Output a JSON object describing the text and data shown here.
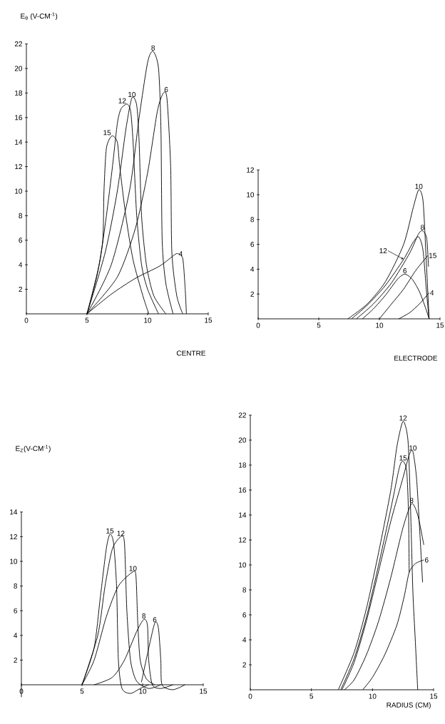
{
  "chart_data": [
    {
      "type": "line",
      "ylabel": "E$_{θ}$ (V-CM$^{-1}$)",
      "xlabel": "CENTRE",
      "xlim": [
        0,
        15
      ],
      "ylim": [
        0,
        22
      ],
      "xticks": [
        0,
        5,
        10,
        15
      ],
      "yticks": [
        2,
        4,
        6,
        8,
        10,
        12,
        14,
        16,
        18,
        20,
        22
      ],
      "series": [
        {
          "name": "15",
          "color": "#000000",
          "x": [
            5,
            5.8,
            6.3,
            6.4,
            6.6,
            7.05,
            7.5,
            7.7,
            8.2,
            8.8,
            9.6,
            10.1
          ],
          "values": [
            0,
            3,
            6,
            10,
            13.5,
            14.5,
            14,
            12,
            8,
            4.4,
            1.5,
            0
          ]
        },
        {
          "name": "12",
          "color": "#000000",
          "x": [
            5,
            6,
            6.6,
            7.1,
            7.5,
            7.8,
            8.3,
            8.6,
            8.8,
            9.1,
            9.5,
            10,
            10.9
          ],
          "values": [
            0,
            4,
            8,
            12,
            15.5,
            16.7,
            17.1,
            16.5,
            14,
            8,
            4,
            2,
            0
          ]
        },
        {
          "name": "10",
          "color": "#000000",
          "x": [
            5,
            6.5,
            7.5,
            8.2,
            8.7,
            9.1,
            9.3,
            9.5,
            9.9,
            10.5,
            11.5
          ],
          "values": [
            0,
            5,
            10,
            15,
            17.6,
            17,
            14,
            8,
            4,
            1.5,
            0
          ]
        },
        {
          "name": "8",
          "color": "#000000",
          "x": [
            5,
            7,
            8.5,
            9.3,
            10,
            10.45,
            10.9,
            11.1,
            11.2,
            11.5,
            12.1
          ],
          "values": [
            0,
            4,
            10,
            16,
            20.5,
            21.4,
            20,
            15,
            6,
            2.5,
            0
          ]
        },
        {
          "name": "6",
          "color": "#000000",
          "x": [
            5,
            7.5,
            9,
            10,
            10.8,
            11.3,
            11.6,
            11.9,
            12,
            12.4,
            12.9
          ],
          "values": [
            0,
            3,
            7,
            11.5,
            16.5,
            18,
            17.5,
            12,
            5,
            1.5,
            0
          ]
        },
        {
          "name": "4",
          "color": "#000000",
          "x": [
            5,
            7,
            9,
            11,
            12.2,
            12.5,
            12.9,
            13.1,
            13.2
          ],
          "values": [
            0,
            1.6,
            2.9,
            3.9,
            4.8,
            4.9,
            4.5,
            2,
            0
          ]
        }
      ]
    },
    {
      "type": "line",
      "xlabel": "ELECTRODE",
      "xlim": [
        0,
        15
      ],
      "ylim": [
        0,
        12
      ],
      "xticks": [
        0,
        5,
        10,
        15
      ],
      "yticks": [
        2,
        4,
        6,
        8,
        10,
        12
      ],
      "series": [
        {
          "name": "10",
          "color": "#000000",
          "x": [
            7.4,
            9,
            10.5,
            12,
            12.8,
            13.25,
            13.6,
            13.85,
            14.1
          ],
          "values": [
            0,
            1.2,
            3,
            6,
            9,
            10.4,
            9.5,
            5,
            0
          ]
        },
        {
          "name": "12",
          "color": "#000000",
          "x": [
            7.7,
            9,
            10.5,
            12,
            12.8,
            13.25,
            13.6,
            13.9,
            14.1
          ],
          "values": [
            0,
            1.1,
            2.7,
            4.8,
            6.2,
            6.6,
            5.5,
            2,
            0
          ]
        },
        {
          "name": "8",
          "color": "#000000",
          "x": [
            8.1,
            9.5,
            11,
            12.5,
            13.2,
            13.55,
            13.9,
            14.05
          ],
          "values": [
            0,
            1.2,
            2.9,
            5.3,
            6.8,
            7.1,
            6.5,
            4.2
          ]
        },
        {
          "name": "6",
          "color": "#000000",
          "x": [
            8.6,
            9.5,
            10.5,
            11.5,
            12.1,
            12.7,
            13.3,
            13.8,
            14.1
          ],
          "values": [
            0,
            0.8,
            1.9,
            3.2,
            3.6,
            3.2,
            2.2,
            0.9,
            0
          ]
        },
        {
          "name": "15",
          "color": "#000000",
          "x": [
            10,
            11,
            12,
            13,
            14
          ],
          "values": [
            0,
            1.2,
            2.4,
            3.9,
            5.1
          ]
        },
        {
          "name": "4",
          "color": "#000000",
          "x": [
            11.6,
            12.5,
            13.3,
            14.1
          ],
          "values": [
            0,
            0.5,
            1.2,
            2.1
          ]
        }
      ]
    },
    {
      "type": "line",
      "ylabel": "E$_{Z}$(V-CM$^{-1}$)",
      "xlim": [
        0,
        15
      ],
      "ylim": [
        -1,
        14
      ],
      "xticks": [
        0,
        5,
        10,
        15
      ],
      "yticks": [
        2,
        4,
        6,
        8,
        10,
        12,
        14
      ],
      "series": [
        {
          "name": "15",
          "color": "#000000",
          "x": [
            5,
            6,
            6.5,
            7,
            7.3,
            7.6,
            7.85,
            8,
            8.3,
            9,
            9.8,
            10.5
          ],
          "values": [
            0,
            3,
            7,
            11,
            12.2,
            11.5,
            8,
            2,
            -0.3,
            -0.7,
            -0.3,
            0
          ]
        },
        {
          "name": "12",
          "color": "#000000",
          "x": [
            5,
            6.3,
            6.9,
            7.5,
            8.2,
            8.5,
            8.7,
            9,
            9.5,
            10.5,
            11.5
          ],
          "values": [
            0,
            4,
            8,
            11,
            12,
            11.5,
            6,
            2,
            0.3,
            -0.3,
            0
          ]
        },
        {
          "name": "10",
          "color": "#000000",
          "x": [
            5,
            6,
            7,
            8,
            9.2,
            9.45,
            9.6,
            9.8,
            10.3,
            11
          ],
          "values": [
            0,
            2,
            5.5,
            8,
            9.15,
            8.8,
            5,
            2,
            0.5,
            0
          ]
        },
        {
          "name": "8",
          "color": "#000000",
          "x": [
            6,
            7.5,
            8.5,
            9.5,
            10.1,
            10.4,
            10.5,
            10.8,
            11.5,
            12.5
          ],
          "values": [
            0,
            0.6,
            2,
            4.3,
            5.3,
            4.8,
            2,
            0,
            -0.3,
            0
          ]
        },
        {
          "name": "6",
          "color": "#000000",
          "x": [
            9.9,
            10.4,
            11,
            11.3,
            11.5,
            11.6,
            12.5,
            13.5
          ],
          "values": [
            0.2,
            2.5,
            5,
            4.6,
            2,
            0,
            -0.4,
            0
          ]
        }
      ]
    },
    {
      "type": "line",
      "xlabel": "RADIUS (CM)",
      "xlim": [
        0,
        15
      ],
      "ylim": [
        0,
        22
      ],
      "xticks": [
        0,
        5,
        10,
        15
      ],
      "yticks": [
        2,
        4,
        6,
        8,
        10,
        12,
        14,
        16,
        18,
        20,
        22
      ],
      "series": [
        {
          "name": "12",
          "color": "#000000",
          "x": [
            7.2,
            8.5,
            9.5,
            10.5,
            11.5,
            12,
            12.5,
            12.9,
            13.1,
            13.3,
            13.5,
            13.7
          ],
          "values": [
            0,
            3,
            6.5,
            11,
            16,
            19.5,
            21.5,
            20,
            15,
            8,
            4,
            0
          ]
        },
        {
          "name": "15",
          "color": "#000000",
          "x": [
            7.4,
            8.5,
            9.5,
            10.5,
            11.5,
            12.2,
            12.5,
            12.8,
            12.95,
            13
          ],
          "values": [
            0,
            2.5,
            5.8,
            10,
            14.5,
            17.8,
            18.3,
            17.5,
            14,
            9.4
          ]
        },
        {
          "name": "10",
          "color": "#000000",
          "x": [
            7.5,
            8.5,
            9.5,
            10.5,
            11.5,
            12.5,
            13,
            13.3,
            13.6,
            13.85,
            14.1
          ],
          "values": [
            0,
            2.2,
            5.5,
            9.5,
            13.5,
            17,
            18.8,
            19.1,
            17,
            13,
            8.6
          ]
        },
        {
          "name": "8",
          "color": "#000000",
          "x": [
            7.7,
            8.5,
            9.5,
            10.5,
            11.5,
            12.5,
            13.2,
            13.7,
            14.2
          ],
          "values": [
            0,
            0.8,
            2.8,
            5.5,
            9,
            13,
            14.9,
            14,
            11.6
          ]
        },
        {
          "name": "6",
          "color": "#000000",
          "x": [
            9.2,
            10,
            11,
            12,
            12.6,
            13,
            13.5,
            14.2
          ],
          "values": [
            0,
            1,
            2.8,
            5.2,
            7.5,
            9.4,
            10.1,
            10.4
          ]
        }
      ]
    }
  ]
}
